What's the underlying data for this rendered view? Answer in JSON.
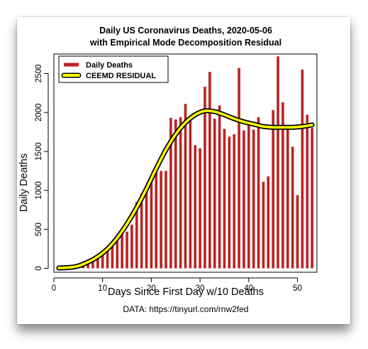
{
  "colors": {
    "bar": "#BB2222",
    "residual_fill": "#FFFF00",
    "residual_outline": "#000000"
  },
  "chart_data": {
    "type": "bar",
    "title": "Daily US Coronavirus Deaths, 2020-05-06",
    "subtitle": "with Empirical Mode Decomposition Residual",
    "xlabel": "Days Since First Day w/10 Deaths",
    "ylabel": "Daily Deaths",
    "source": "DATA: https://tinyurl.com/rnw2fed",
    "xlim": [
      0,
      54
    ],
    "ylim": [
      -50,
      2750
    ],
    "xticks": [
      0,
      10,
      20,
      30,
      40,
      50
    ],
    "yticks": [
      0,
      500,
      1000,
      1500,
      2000,
      2500
    ],
    "grid": false,
    "legend": {
      "position": "top-left",
      "entries": [
        "Daily Deaths",
        "CEEMD RESIDUAL"
      ]
    },
    "series": [
      {
        "name": "Daily Deaths",
        "type": "bar",
        "x": [
          1,
          2,
          3,
          4,
          5,
          6,
          7,
          8,
          9,
          10,
          11,
          12,
          13,
          14,
          15,
          16,
          17,
          18,
          19,
          20,
          21,
          22,
          23,
          24,
          25,
          26,
          27,
          28,
          29,
          30,
          31,
          32,
          33,
          34,
          35,
          36,
          37,
          38,
          39,
          40,
          41,
          42,
          43,
          44,
          45,
          46,
          47,
          48,
          49,
          50,
          51,
          52,
          53
        ],
        "values": [
          10,
          15,
          20,
          25,
          40,
          55,
          80,
          110,
          160,
          190,
          250,
          280,
          350,
          450,
          470,
          560,
          850,
          960,
          1050,
          1150,
          1280,
          1250,
          1250,
          1930,
          1910,
          1940,
          2110,
          1930,
          1580,
          1540,
          2330,
          2520,
          1920,
          2090,
          1790,
          1690,
          1720,
          2570,
          1770,
          1890,
          1780,
          1940,
          1110,
          1180,
          2030,
          2720,
          2130,
          1800,
          1560,
          940,
          2550,
          1970,
          1800
        ]
      },
      {
        "name": "CEEMD RESIDUAL",
        "type": "line",
        "x": [
          1,
          3,
          5,
          7,
          9,
          11,
          13,
          15,
          17,
          19,
          21,
          23,
          25,
          27,
          29,
          31,
          33,
          35,
          37,
          39,
          41,
          43,
          45,
          47,
          49,
          51,
          53
        ],
        "values": [
          5,
          10,
          30,
          80,
          150,
          250,
          390,
          570,
          780,
          1020,
          1280,
          1520,
          1720,
          1870,
          1970,
          2020,
          2010,
          1970,
          1920,
          1880,
          1850,
          1820,
          1810,
          1810,
          1810,
          1820,
          1840
        ]
      }
    ]
  }
}
